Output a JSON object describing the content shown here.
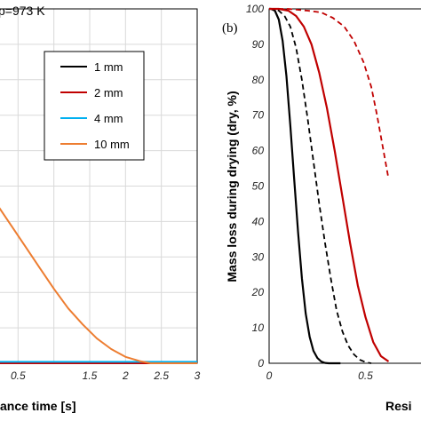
{
  "chart_data": [
    {
      "type": "line",
      "annotation": "p=973 K",
      "xlabel": "ance time [s]",
      "ylabel": "",
      "xlim": [
        0,
        3
      ],
      "ylim": [
        0,
        1
      ],
      "grid": true,
      "legend_placement": "top-right",
      "x_ticks": [
        {
          "value": 0.5,
          "label": "0.5"
        },
        {
          "value": 1.5,
          "label": "1.5"
        },
        {
          "value": 2,
          "label": "2"
        },
        {
          "value": 2.5,
          "label": "2.5"
        },
        {
          "value": 3,
          "label": "3"
        }
      ],
      "series": [
        {
          "name": "1 mm",
          "color": "#000000",
          "x": [
            0,
            3
          ],
          "y": [
            0,
            0
          ]
        },
        {
          "name": "2 mm",
          "color": "#c00000",
          "x": [
            0,
            3
          ],
          "y": [
            0,
            0
          ]
        },
        {
          "name": "4 mm",
          "color": "#00b0f0",
          "x": [
            0,
            0.5,
            3
          ],
          "y": [
            0.004,
            0.004,
            0.004
          ]
        },
        {
          "name": "10 mm",
          "color": "#ed7d31",
          "x": [
            0.0,
            0.03,
            0.2,
            0.4,
            0.6,
            0.8,
            1.0,
            1.2,
            1.4,
            1.6,
            1.8,
            2.0,
            2.2,
            2.35,
            2.45,
            3.0
          ],
          "y": [
            0.47,
            0.5,
            0.45,
            0.39,
            0.33,
            0.27,
            0.21,
            0.155,
            0.11,
            0.07,
            0.04,
            0.018,
            0.006,
            0.0,
            0.0,
            0.0
          ]
        }
      ]
    },
    {
      "type": "line",
      "panel_label": "(b)",
      "ylabel": "Mass loss during drying (dry, %)",
      "xlabel": "Resi",
      "xlim": [
        0,
        1
      ],
      "ylim": [
        0,
        100
      ],
      "grid": false,
      "x_ticks": [
        {
          "value": 0,
          "label": "0"
        },
        {
          "value": 0.5,
          "label": "0.5"
        }
      ],
      "y_ticks": [
        0,
        10,
        20,
        30,
        40,
        50,
        60,
        70,
        80,
        90,
        100
      ],
      "series": [
        {
          "name": "",
          "color": "#000000",
          "dash": false,
          "x": [
            0,
            0.01,
            0.03,
            0.05,
            0.07,
            0.09,
            0.11,
            0.13,
            0.15,
            0.17,
            0.19,
            0.21,
            0.23,
            0.25,
            0.27,
            0.29,
            0.31,
            0.33,
            0.35,
            0.37
          ],
          "y": [
            100,
            100,
            99.5,
            97,
            91,
            81,
            67,
            52,
            37,
            24,
            14,
            7.5,
            3.5,
            1.5,
            0.5,
            0.1,
            0,
            0,
            0,
            0
          ]
        },
        {
          "name": "",
          "color": "#000000",
          "dash": true,
          "x": [
            0,
            0.02,
            0.05,
            0.08,
            0.11,
            0.14,
            0.17,
            0.2,
            0.23,
            0.26,
            0.29,
            0.32,
            0.35,
            0.38,
            0.41,
            0.44,
            0.47,
            0.5,
            0.53
          ],
          "y": [
            100,
            100,
            99.5,
            98,
            95,
            89,
            80,
            69,
            57,
            45,
            34,
            24,
            15,
            9,
            5,
            2.5,
            1,
            0.3,
            0
          ]
        },
        {
          "name": "",
          "color": "#c00000",
          "dash": false,
          "x": [
            0,
            0.05,
            0.1,
            0.14,
            0.18,
            0.22,
            0.26,
            0.3,
            0.34,
            0.38,
            0.42,
            0.46,
            0.5,
            0.54,
            0.58,
            0.62
          ],
          "y": [
            100,
            100,
            99.5,
            98,
            95,
            90,
            82,
            72,
            60,
            47,
            34,
            22,
            13,
            6,
            2,
            0.5
          ]
        },
        {
          "name": "",
          "color": "#c00000",
          "dash": true,
          "x": [
            0,
            0.1,
            0.2,
            0.27,
            0.33,
            0.39,
            0.44,
            0.49,
            0.53,
            0.56,
            0.59,
            0.62
          ],
          "y": [
            100,
            100,
            99.5,
            99,
            97.5,
            95,
            91,
            85,
            78,
            70,
            61,
            52
          ]
        }
      ]
    }
  ]
}
